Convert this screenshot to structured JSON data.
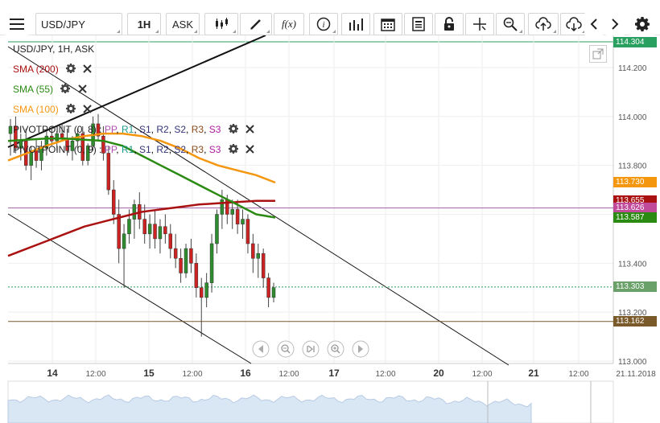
{
  "toolbar": {
    "symbol": "USD/JPY",
    "timeframe": "1H",
    "price_type": "ASK",
    "icons": [
      "menu-icon",
      "candles-icon",
      "draw-icon",
      "function-icon",
      "info-icon",
      "bars-icon",
      "calendar-icon",
      "document-icon",
      "lock-icon",
      "crosshair-icon",
      "zoom-icon",
      "upload-icon",
      "download-icon",
      "chevron-left-icon",
      "chevron-right-icon",
      "gear-icon"
    ],
    "fx_label": "f(x)"
  },
  "legend": {
    "title": "USD/JPY, 1H, ASK",
    "sma200": "SMA (200)",
    "sma55": "SMA (55)",
    "sma100": "SMA (100)",
    "pivot1_name": "PIVOTPOINT (0, 8)",
    "pivot2_name": "PIVOTPOINT (0, 9)",
    "pivot_levels": [
      "PP",
      "R1",
      "S1",
      "R2",
      "S2",
      "R3",
      "S3"
    ],
    "colors": {
      "sma200": "#aa1111",
      "sma55": "#2a8a12",
      "sma100": "#f5960f",
      "pp": "#b04fb0",
      "r1": "#1a9a8a",
      "s1": "#333377",
      "r2": "#333377",
      "s2": "#333377",
      "r3": "#8a4a1a",
      "s3": "#b01aa0"
    }
  },
  "chart_data": {
    "type": "candlestick",
    "x_ticks": [
      "14",
      "12:00",
      "15",
      "12:00",
      "16",
      "12:00",
      "17",
      "12:00",
      "20",
      "12:00",
      "21",
      "12:00",
      "21.11.2018"
    ],
    "y_ticks": [
      "114.200",
      "114.000",
      "113.800",
      "113.600",
      "113.400",
      "113.200",
      "113.000"
    ],
    "ylim": [
      112.98,
      114.31
    ],
    "price_labels": [
      {
        "value": "114.304",
        "color": "#2aa060"
      },
      {
        "value": "113.730",
        "color": "#f5960f"
      },
      {
        "value": "113.655",
        "color": "#aa1111"
      },
      {
        "value": "113.626",
        "color": "#c04b9b"
      },
      {
        "value": "113.587",
        "color": "#2a8a12"
      },
      {
        "value": "113.303",
        "color": "#6aa06a"
      },
      {
        "value": "113.162",
        "color": "#7a5a2a"
      }
    ],
    "candles": [
      [
        113.93,
        113.99,
        113.84,
        113.96
      ],
      [
        113.96,
        114.0,
        113.85,
        113.87
      ],
      [
        113.87,
        113.93,
        113.82,
        113.9
      ],
      [
        113.9,
        113.95,
        113.78,
        113.8
      ],
      [
        113.8,
        113.88,
        113.74,
        113.86
      ],
      [
        113.86,
        113.91,
        113.79,
        113.82
      ],
      [
        113.82,
        113.9,
        113.78,
        113.87
      ],
      [
        113.87,
        113.94,
        113.84,
        113.92
      ],
      [
        113.92,
        113.96,
        113.88,
        113.9
      ],
      [
        113.9,
        113.94,
        113.86,
        113.93
      ],
      [
        113.93,
        113.97,
        113.9,
        113.91
      ],
      [
        113.91,
        113.95,
        113.84,
        113.86
      ],
      [
        113.86,
        113.92,
        113.82,
        113.9
      ],
      [
        113.9,
        113.95,
        113.87,
        113.93
      ],
      [
        113.93,
        113.96,
        113.8,
        113.82
      ],
      [
        113.82,
        113.89,
        113.8,
        113.88
      ],
      [
        113.88,
        114.0,
        113.86,
        113.97
      ],
      [
        113.97,
        114.01,
        113.9,
        113.92
      ],
      [
        113.92,
        113.96,
        113.82,
        113.85
      ],
      [
        113.85,
        113.88,
        113.68,
        113.7
      ],
      [
        113.7,
        113.74,
        113.56,
        113.6
      ],
      [
        113.6,
        113.66,
        113.4,
        113.46
      ],
      [
        113.46,
        113.56,
        113.3,
        113.52
      ],
      [
        113.52,
        113.62,
        113.48,
        113.58
      ],
      [
        113.58,
        113.66,
        113.5,
        113.64
      ],
      [
        113.64,
        113.69,
        113.54,
        113.58
      ],
      [
        113.58,
        113.64,
        113.48,
        113.52
      ],
      [
        113.52,
        113.6,
        113.46,
        113.56
      ],
      [
        113.56,
        113.62,
        113.46,
        113.5
      ],
      [
        113.5,
        113.58,
        113.44,
        113.55
      ],
      [
        113.55,
        113.6,
        113.48,
        113.52
      ],
      [
        113.52,
        113.56,
        113.42,
        113.46
      ],
      [
        113.46,
        113.52,
        113.38,
        113.42
      ],
      [
        113.42,
        113.46,
        113.32,
        113.36
      ],
      [
        113.36,
        113.48,
        113.34,
        113.46
      ],
      [
        113.46,
        113.5,
        113.36,
        113.4
      ],
      [
        113.4,
        113.44,
        113.26,
        113.3
      ],
      [
        113.3,
        113.34,
        113.1,
        113.26
      ],
      [
        113.26,
        113.36,
        113.22,
        113.32
      ],
      [
        113.32,
        113.52,
        113.28,
        113.48
      ],
      [
        113.48,
        113.62,
        113.44,
        113.6
      ],
      [
        113.6,
        113.7,
        113.54,
        113.66
      ],
      [
        113.66,
        113.68,
        113.56,
        113.6
      ],
      [
        113.6,
        113.66,
        113.54,
        113.62
      ],
      [
        113.62,
        113.66,
        113.52,
        113.56
      ],
      [
        113.56,
        113.62,
        113.5,
        113.58
      ],
      [
        113.58,
        113.6,
        113.44,
        113.48
      ],
      [
        113.48,
        113.52,
        113.36,
        113.42
      ],
      [
        113.42,
        113.48,
        113.34,
        113.44
      ],
      [
        113.44,
        113.46,
        113.3,
        113.34
      ],
      [
        113.34,
        113.36,
        113.22,
        113.26
      ],
      [
        113.26,
        113.32,
        113.24,
        113.3
      ]
    ],
    "sma200": [
      113.43,
      113.46,
      113.49,
      113.52,
      113.55,
      113.57,
      113.59,
      113.61,
      113.62,
      113.63,
      113.64,
      113.645,
      113.65,
      113.655,
      113.655
    ],
    "sma55": [
      113.9,
      113.905,
      113.91,
      113.91,
      113.905,
      113.9,
      113.88,
      113.84,
      113.8,
      113.76,
      113.72,
      113.68,
      113.64,
      113.6,
      113.587
    ],
    "sma100": [
      113.82,
      113.85,
      113.88,
      113.905,
      113.92,
      113.93,
      113.93,
      113.92,
      113.9,
      113.87,
      113.83,
      113.8,
      113.78,
      113.76,
      113.73
    ],
    "pivot_pp": 113.626,
    "pivot_s": 113.162
  },
  "nav": {
    "buttons": [
      "back-icon",
      "zoom-out-icon",
      "reset-icon",
      "zoom-in-icon",
      "forward-icon"
    ]
  }
}
